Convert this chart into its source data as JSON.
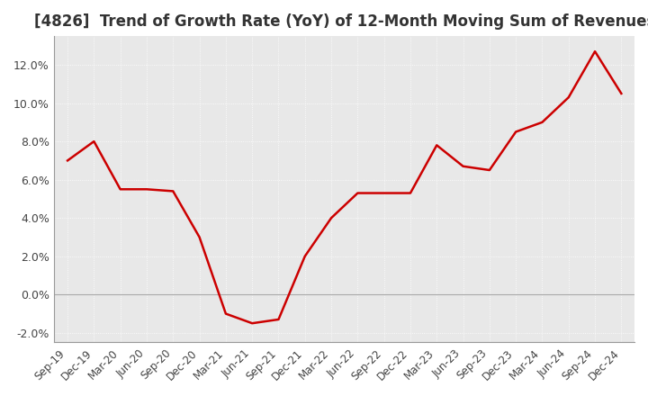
{
  "title": "[4826]  Trend of Growth Rate (YoY) of 12-Month Moving Sum of Revenues",
  "title_fontsize": 12,
  "line_color": "#cc0000",
  "background_color": "#ffffff",
  "plot_bg_color": "#e8e8e8",
  "grid_color": "#ffffff",
  "zero_line_color": "#aaaaaa",
  "ylim": [
    -0.025,
    0.135
  ],
  "yticks": [
    -0.02,
    0.0,
    0.02,
    0.04,
    0.06,
    0.08,
    0.1,
    0.12
  ],
  "ytick_labels": [
    "-2.0%",
    "0.0%",
    "2.0%",
    "4.0%",
    "6.0%",
    "8.0%",
    "10.0%",
    "12.0%"
  ],
  "dates": [
    "Sep-19",
    "Dec-19",
    "Mar-20",
    "Jun-20",
    "Sep-20",
    "Dec-20",
    "Mar-21",
    "Jun-21",
    "Sep-21",
    "Dec-21",
    "Mar-22",
    "Jun-22",
    "Sep-22",
    "Dec-22",
    "Mar-23",
    "Jun-23",
    "Sep-23",
    "Dec-23",
    "Mar-24",
    "Jun-24",
    "Sep-24",
    "Dec-24"
  ],
  "values": [
    0.07,
    0.08,
    0.055,
    0.055,
    0.054,
    0.03,
    -0.01,
    -0.015,
    -0.013,
    0.02,
    0.04,
    0.053,
    0.053,
    0.053,
    0.078,
    0.067,
    0.065,
    0.085,
    0.09,
    0.103,
    0.127,
    0.105
  ]
}
